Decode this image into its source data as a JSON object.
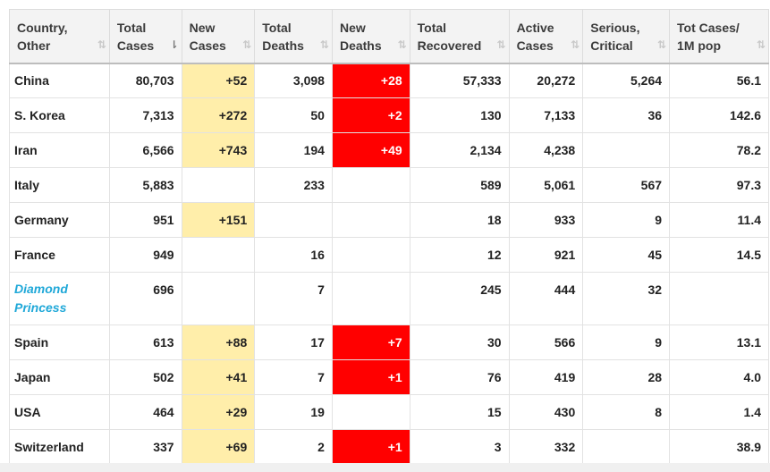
{
  "headers": [
    {
      "label": "Country,\nOther",
      "sort_active": false
    },
    {
      "label": "Total\nCases",
      "sort_active": true
    },
    {
      "label": "New\nCases",
      "sort_active": false
    },
    {
      "label": "Total\nDeaths",
      "sort_active": false
    },
    {
      "label": "New\nDeaths",
      "sort_active": false
    },
    {
      "label": "Total\nRecovered",
      "sort_active": false
    },
    {
      "label": "Active\nCases",
      "sort_active": false
    },
    {
      "label": "Serious,\nCritical",
      "sort_active": false
    },
    {
      "label": "Tot Cases/\n1M pop",
      "sort_active": false
    }
  ],
  "sort_icon": "⇅",
  "sort_icon_active": "⇂",
  "colors": {
    "new_cases_highlight": "#ffeeaa",
    "new_deaths_highlight": "#ff0000",
    "ship_link": "#1fa8d8"
  },
  "rows": [
    {
      "country": "China",
      "total_cases": "80,703",
      "new_cases": "+52",
      "total_deaths": "3,098",
      "new_deaths": "+28",
      "total_recovered": "57,333",
      "active_cases": "20,272",
      "serious_critical": "5,264",
      "tot_cases_per_1m": "56.1"
    },
    {
      "country": "S. Korea",
      "total_cases": "7,313",
      "new_cases": "+272",
      "total_deaths": "50",
      "new_deaths": "+2",
      "total_recovered": "130",
      "active_cases": "7,133",
      "serious_critical": "36",
      "tot_cases_per_1m": "142.6"
    },
    {
      "country": "Iran",
      "total_cases": "6,566",
      "new_cases": "+743",
      "total_deaths": "194",
      "new_deaths": "+49",
      "total_recovered": "2,134",
      "active_cases": "4,238",
      "serious_critical": "",
      "tot_cases_per_1m": "78.2"
    },
    {
      "country": "Italy",
      "total_cases": "5,883",
      "new_cases": "",
      "total_deaths": "233",
      "new_deaths": "",
      "total_recovered": "589",
      "active_cases": "5,061",
      "serious_critical": "567",
      "tot_cases_per_1m": "97.3"
    },
    {
      "country": "Germany",
      "total_cases": "951",
      "new_cases": "+151",
      "total_deaths": "",
      "new_deaths": "",
      "total_recovered": "18",
      "active_cases": "933",
      "serious_critical": "9",
      "tot_cases_per_1m": "11.4"
    },
    {
      "country": "France",
      "total_cases": "949",
      "new_cases": "",
      "total_deaths": "16",
      "new_deaths": "",
      "total_recovered": "12",
      "active_cases": "921",
      "serious_critical": "45",
      "tot_cases_per_1m": "14.5"
    },
    {
      "country": "Diamond Princess",
      "is_link": true,
      "total_cases": "696",
      "new_cases": "",
      "total_deaths": "7",
      "new_deaths": "",
      "total_recovered": "245",
      "active_cases": "444",
      "serious_critical": "32",
      "tot_cases_per_1m": ""
    },
    {
      "country": "Spain",
      "total_cases": "613",
      "new_cases": "+88",
      "total_deaths": "17",
      "new_deaths": "+7",
      "total_recovered": "30",
      "active_cases": "566",
      "serious_critical": "9",
      "tot_cases_per_1m": "13.1"
    },
    {
      "country": "Japan",
      "total_cases": "502",
      "new_cases": "+41",
      "total_deaths": "7",
      "new_deaths": "+1",
      "total_recovered": "76",
      "active_cases": "419",
      "serious_critical": "28",
      "tot_cases_per_1m": "4.0"
    },
    {
      "country": "USA",
      "total_cases": "464",
      "new_cases": "+29",
      "total_deaths": "19",
      "new_deaths": "",
      "total_recovered": "15",
      "active_cases": "430",
      "serious_critical": "8",
      "tot_cases_per_1m": "1.4"
    },
    {
      "country": "Switzerland",
      "total_cases": "337",
      "new_cases": "+69",
      "total_deaths": "2",
      "new_deaths": "+1",
      "total_recovered": "3",
      "active_cases": "332",
      "serious_critical": "",
      "tot_cases_per_1m": "38.9"
    }
  ]
}
